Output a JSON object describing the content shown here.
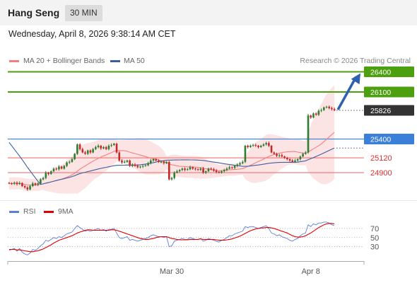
{
  "header": {
    "symbol": "Hang Seng",
    "timeframe": "30 MIN"
  },
  "datetime": "Wednesday, April 8, 2026 9:38:14 AM CET",
  "legend": {
    "ma20": {
      "label": "MA 20 + Bollinger Bands",
      "color": "#f08080"
    },
    "ma50": {
      "label": "MA 50",
      "color": "#3a5fa0"
    }
  },
  "credit": "Research © 2026 Trading Central",
  "rsi_legend": {
    "rsi": {
      "label": "RSI",
      "color": "#5b7fd6"
    },
    "ma9": {
      "label": "9MA",
      "color": "#e00000"
    }
  },
  "chart_data": [
    {
      "type": "candlestick",
      "price_axis": {
        "min": 24500,
        "max": 26500
      },
      "x_labels": [
        "Mar 30",
        "Apr 8"
      ],
      "last_price": 25826,
      "levels": [
        {
          "value": 26400,
          "label": "26400",
          "kind": "resistance",
          "color": "#4ca010"
        },
        {
          "value": 26100,
          "label": "26100",
          "kind": "resistance",
          "color": "#4ca010"
        },
        {
          "value": 25400,
          "label": "25400",
          "kind": "pivot",
          "color": "#3a7fd8"
        },
        {
          "value": 25120,
          "label": "25120",
          "kind": "support",
          "color": "#e03030"
        },
        {
          "value": 24900,
          "label": "24900",
          "kind": "support",
          "color": "#e03030"
        }
      ],
      "close": [
        24740,
        24735,
        24750,
        24730,
        24745,
        24700,
        24680,
        24650,
        24700,
        24740,
        24720,
        24740,
        24800,
        24820,
        24900,
        24880,
        24920,
        24960,
        24950,
        24990,
        24960,
        25000,
        25050,
        25060,
        25100,
        25180,
        25320,
        25250,
        25200,
        25180,
        25230,
        25200,
        25250,
        25280,
        25300,
        25260,
        25280,
        25250,
        25300,
        25310,
        25330,
        25200,
        25080,
        25050,
        25060,
        25080,
        25000,
        25020,
        25000,
        24980,
        24990,
        25000,
        25010,
        25040,
        25080,
        25100,
        25080,
        25060,
        25060,
        25040,
        25060,
        24800,
        24820,
        24900,
        24920,
        24940,
        24960,
        24940,
        24950,
        24980,
        24960,
        24950,
        24940,
        24960,
        24900,
        24920,
        24960,
        24950,
        24930,
        24910,
        24900,
        24920,
        24940,
        24960,
        24980,
        24970,
        25000,
        25020,
        25040,
        25060,
        25300,
        25280,
        25300,
        25310,
        25300,
        25280,
        25300,
        25320,
        25340,
        25300,
        25200,
        25180,
        25150,
        25160,
        25140,
        25120,
        25100,
        25080,
        25060,
        25080,
        25100,
        25140,
        25180,
        25200,
        25750,
        25720,
        25780,
        25760,
        25820,
        25830,
        25870,
        25880,
        25860,
        25845,
        25826
      ]
    },
    {
      "type": "line",
      "name": "RSI",
      "y_ticks": [
        30,
        50,
        70
      ],
      "rsi": [
        22,
        24,
        26,
        20,
        26,
        18,
        14,
        12,
        16,
        24,
        22,
        26,
        32,
        36,
        44,
        42,
        46,
        50,
        48,
        52,
        50,
        54,
        58,
        60,
        62,
        70,
        76,
        72,
        68,
        64,
        66,
        64,
        66,
        68,
        70,
        66,
        68,
        64,
        68,
        68,
        70,
        60,
        50,
        48,
        50,
        52,
        44,
        46,
        44,
        42,
        44,
        46,
        48,
        50,
        54,
        56,
        54,
        52,
        52,
        50,
        52,
        30,
        32,
        42,
        44,
        46,
        48,
        46,
        46,
        50,
        48,
        46,
        46,
        48,
        42,
        44,
        48,
        46,
        44,
        42,
        40,
        44,
        46,
        50,
        54,
        54,
        58,
        60,
        62,
        64,
        74,
        72,
        74,
        74,
        72,
        70,
        72,
        74,
        76,
        70,
        60,
        58,
        54,
        56,
        52,
        50,
        48,
        44,
        42,
        46,
        48,
        54,
        58,
        60,
        78,
        74,
        80,
        78,
        82,
        82,
        84,
        84,
        82,
        78,
        76
      ],
      "ma9": [
        24,
        24,
        24,
        23,
        23,
        22,
        21,
        20,
        19,
        19,
        20,
        21,
        23,
        25,
        28,
        31,
        34,
        38,
        41,
        44,
        46,
        48,
        50,
        52,
        54,
        57,
        60,
        62,
        64,
        66,
        67,
        67,
        66,
        66,
        66,
        66,
        66,
        66,
        66,
        67,
        67,
        66,
        64,
        62,
        60,
        58,
        56,
        54,
        52,
        50,
        48,
        47,
        46,
        46,
        47,
        48,
        50,
        51,
        52,
        52,
        52,
        50,
        48,
        47,
        46,
        45,
        45,
        45,
        45,
        46,
        46,
        46,
        46,
        47,
        46,
        46,
        46,
        46,
        46,
        45,
        44,
        44,
        44,
        45,
        46,
        47,
        49,
        51,
        53,
        56,
        59,
        62,
        65,
        67,
        69,
        70,
        71,
        71,
        72,
        72,
        71,
        70,
        68,
        66,
        64,
        62,
        60,
        57,
        54,
        52,
        51,
        51,
        52,
        54,
        57,
        60,
        64,
        68,
        72,
        75,
        78,
        80,
        81,
        81,
        80
      ]
    }
  ]
}
